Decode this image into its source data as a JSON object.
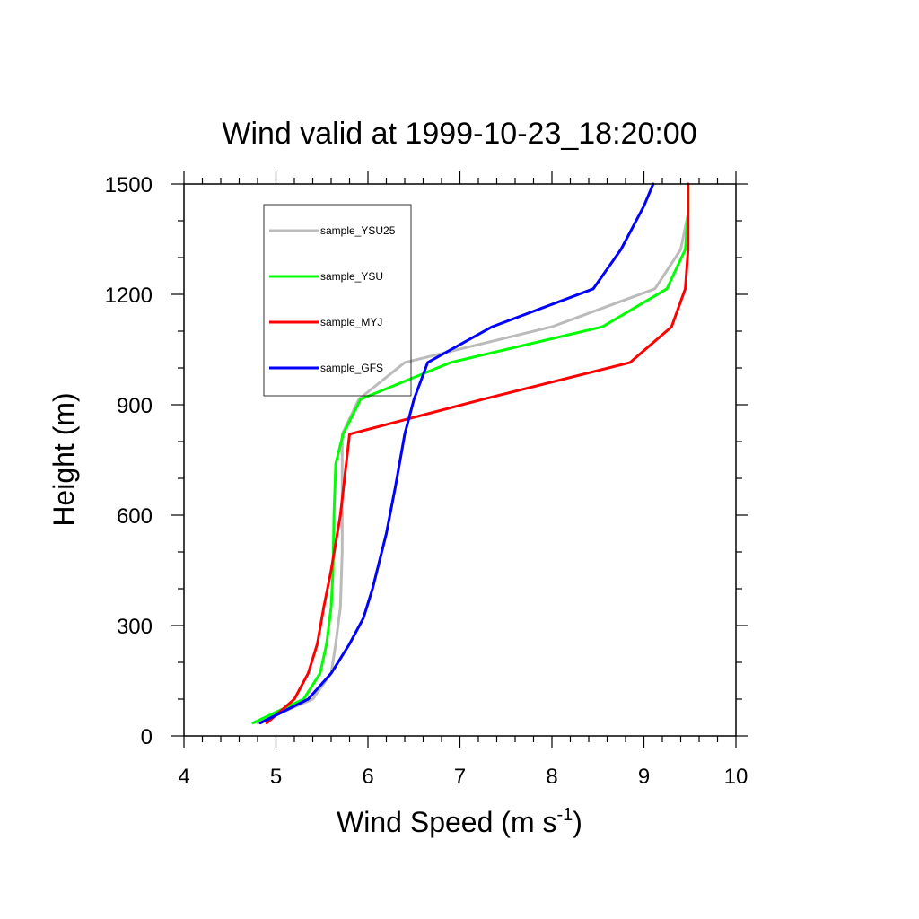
{
  "chart_data": {
    "type": "line",
    "title": "Wind valid at 1999-10-23_18:20:00",
    "xlabel": "Wind Speed (m s",
    "xlabel_superscript": "-1",
    "xlabel_suffix": ")",
    "ylabel": "Height (m)",
    "xlim": [
      4,
      10
    ],
    "ylim": [
      0,
      1500
    ],
    "x_ticks": [
      "4",
      "5",
      "6",
      "7",
      "8",
      "9",
      "10"
    ],
    "y_ticks": [
      "0",
      "300",
      "600",
      "900",
      "1200",
      "1500"
    ],
    "grid": false,
    "legend_position": "top-left",
    "series": [
      {
        "name": "sample_YSU25",
        "color": "#bbbbbb",
        "points": [
          [
            4.8,
            35
          ],
          [
            5.4,
            100
          ],
          [
            5.6,
            170
          ],
          [
            5.65,
            250
          ],
          [
            5.7,
            350
          ],
          [
            5.72,
            500
          ],
          [
            5.72,
            650
          ],
          [
            5.72,
            820
          ],
          [
            5.9,
            915
          ],
          [
            6.4,
            1015
          ],
          [
            8.0,
            1112
          ],
          [
            9.12,
            1215
          ],
          [
            9.4,
            1322
          ],
          [
            9.48,
            1420
          ],
          [
            9.48,
            1500
          ]
        ]
      },
      {
        "name": "sample_YSU",
        "color": "#00ff00",
        "points": [
          [
            4.75,
            35
          ],
          [
            5.3,
            100
          ],
          [
            5.48,
            170
          ],
          [
            5.55,
            250
          ],
          [
            5.6,
            350
          ],
          [
            5.62,
            450
          ],
          [
            5.63,
            600
          ],
          [
            5.65,
            740
          ],
          [
            5.73,
            820
          ],
          [
            5.92,
            915
          ],
          [
            6.9,
            1015
          ],
          [
            8.55,
            1112
          ],
          [
            9.25,
            1215
          ],
          [
            9.45,
            1322
          ],
          [
            9.48,
            1420
          ],
          [
            9.48,
            1500
          ]
        ]
      },
      {
        "name": "sample_MYJ",
        "color": "#ff0000",
        "points": [
          [
            4.9,
            35
          ],
          [
            5.2,
            100
          ],
          [
            5.35,
            170
          ],
          [
            5.45,
            250
          ],
          [
            5.52,
            350
          ],
          [
            5.6,
            450
          ],
          [
            5.7,
            600
          ],
          [
            5.8,
            820
          ],
          [
            7.25,
            915
          ],
          [
            8.85,
            1015
          ],
          [
            9.3,
            1112
          ],
          [
            9.45,
            1215
          ],
          [
            9.48,
            1322
          ],
          [
            9.48,
            1500
          ]
        ]
      },
      {
        "name": "sample_GFS",
        "color": "#0000ff",
        "points": [
          [
            4.83,
            35
          ],
          [
            5.35,
            100
          ],
          [
            5.6,
            170
          ],
          [
            5.8,
            250
          ],
          [
            5.95,
            320
          ],
          [
            6.05,
            400
          ],
          [
            6.2,
            550
          ],
          [
            6.3,
            680
          ],
          [
            6.4,
            820
          ],
          [
            6.5,
            915
          ],
          [
            6.65,
            1015
          ],
          [
            7.35,
            1112
          ],
          [
            8.45,
            1215
          ],
          [
            8.75,
            1322
          ],
          [
            9.0,
            1440
          ],
          [
            9.1,
            1500
          ]
        ]
      }
    ]
  }
}
